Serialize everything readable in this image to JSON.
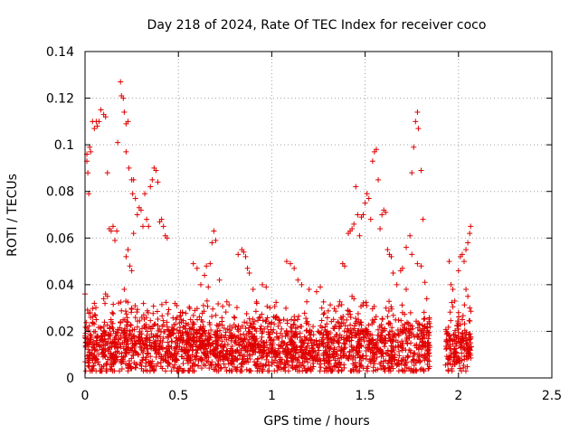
{
  "chart_data": {
    "type": "scatter",
    "title": "Day 218 of 2024, Rate Of TEC Index for receiver coco",
    "xlabel": "GPS time / hours",
    "ylabel": "ROTI / TECUs",
    "xlim": [
      0,
      2.5
    ],
    "ylim": [
      0,
      0.14
    ],
    "x_ticks": [
      0,
      0.5,
      1,
      1.5,
      2,
      2.5
    ],
    "x_tick_labels": [
      "0",
      "0.5",
      "1",
      "1.5",
      "2",
      "2.5"
    ],
    "y_ticks": [
      0,
      0.02,
      0.04,
      0.06,
      0.08,
      0.1,
      0.12,
      0.14
    ],
    "y_tick_labels": [
      "0",
      "0.02",
      "0.04",
      "0.06",
      "0.08",
      "0.1",
      "0.12",
      "0.14"
    ],
    "grid": true,
    "marker": "plus",
    "color": "#e00000",
    "series": [
      {
        "name": "ROTI",
        "points": [
          [
            0.0,
            0.036
          ],
          [
            0.0,
            0.018
          ],
          [
            0.01,
            0.096
          ],
          [
            0.01,
            0.093
          ],
          [
            0.015,
            0.088
          ],
          [
            0.02,
            0.079
          ],
          [
            0.025,
            0.099
          ],
          [
            0.03,
            0.097
          ],
          [
            0.04,
            0.11
          ],
          [
            0.05,
            0.107
          ],
          [
            0.06,
            0.11
          ],
          [
            0.065,
            0.108
          ],
          [
            0.075,
            0.11
          ],
          [
            0.085,
            0.115
          ],
          [
            0.1,
            0.113
          ],
          [
            0.11,
            0.112
          ],
          [
            0.12,
            0.088
          ],
          [
            0.13,
            0.064
          ],
          [
            0.14,
            0.063
          ],
          [
            0.15,
            0.065
          ],
          [
            0.16,
            0.059
          ],
          [
            0.17,
            0.063
          ],
          [
            0.175,
            0.101
          ],
          [
            0.19,
            0.127
          ],
          [
            0.195,
            0.121
          ],
          [
            0.205,
            0.12
          ],
          [
            0.21,
            0.114
          ],
          [
            0.22,
            0.109
          ],
          [
            0.23,
            0.11
          ],
          [
            0.22,
            0.097
          ],
          [
            0.235,
            0.09
          ],
          [
            0.25,
            0.085
          ],
          [
            0.255,
            0.079
          ],
          [
            0.26,
            0.085
          ],
          [
            0.27,
            0.077
          ],
          [
            0.28,
            0.07
          ],
          [
            0.29,
            0.073
          ],
          [
            0.3,
            0.072
          ],
          [
            0.31,
            0.065
          ],
          [
            0.32,
            0.079
          ],
          [
            0.33,
            0.068
          ],
          [
            0.34,
            0.065
          ],
          [
            0.35,
            0.082
          ],
          [
            0.36,
            0.085
          ],
          [
            0.37,
            0.09
          ],
          [
            0.38,
            0.089
          ],
          [
            0.39,
            0.084
          ],
          [
            0.4,
            0.067
          ],
          [
            0.41,
            0.068
          ],
          [
            0.42,
            0.065
          ],
          [
            0.43,
            0.061
          ],
          [
            0.44,
            0.06
          ],
          [
            0.22,
            0.052
          ],
          [
            0.23,
            0.055
          ],
          [
            0.24,
            0.048
          ],
          [
            0.25,
            0.046
          ],
          [
            0.26,
            0.062
          ],
          [
            0.21,
            0.038
          ],
          [
            0.1,
            0.034
          ],
          [
            0.11,
            0.036
          ],
          [
            0.12,
            0.035
          ],
          [
            0.05,
            0.032
          ],
          [
            0.06,
            0.025
          ],
          [
            0.03,
            0.026
          ],
          [
            0.58,
            0.049
          ],
          [
            0.6,
            0.047
          ],
          [
            0.62,
            0.04
          ],
          [
            0.64,
            0.044
          ],
          [
            0.66,
            0.039
          ],
          [
            0.68,
            0.058
          ],
          [
            0.69,
            0.063
          ],
          [
            0.7,
            0.059
          ],
          [
            0.72,
            0.042
          ],
          [
            0.67,
            0.049
          ],
          [
            0.65,
            0.048
          ],
          [
            0.82,
            0.053
          ],
          [
            0.84,
            0.055
          ],
          [
            0.85,
            0.054
          ],
          [
            0.86,
            0.052
          ],
          [
            0.87,
            0.047
          ],
          [
            0.88,
            0.045
          ],
          [
            0.9,
            0.038
          ],
          [
            0.92,
            0.032
          ],
          [
            0.95,
            0.04
          ],
          [
            0.97,
            0.039
          ],
          [
            1.08,
            0.05
          ],
          [
            1.1,
            0.049
          ],
          [
            1.12,
            0.047
          ],
          [
            1.14,
            0.042
          ],
          [
            1.16,
            0.04
          ],
          [
            1.2,
            0.038
          ],
          [
            1.24,
            0.037
          ],
          [
            1.26,
            0.039
          ],
          [
            1.38,
            0.049
          ],
          [
            1.39,
            0.048
          ],
          [
            1.41,
            0.062
          ],
          [
            1.42,
            0.063
          ],
          [
            1.43,
            0.064
          ],
          [
            1.44,
            0.066
          ],
          [
            1.45,
            0.082
          ],
          [
            1.46,
            0.07
          ],
          [
            1.47,
            0.061
          ],
          [
            1.48,
            0.069
          ],
          [
            1.49,
            0.07
          ],
          [
            1.5,
            0.075
          ],
          [
            1.51,
            0.079
          ],
          [
            1.52,
            0.077
          ],
          [
            1.53,
            0.068
          ],
          [
            1.54,
            0.093
          ],
          [
            1.55,
            0.097
          ],
          [
            1.56,
            0.098
          ],
          [
            1.57,
            0.085
          ],
          [
            1.58,
            0.064
          ],
          [
            1.59,
            0.07
          ],
          [
            1.6,
            0.072
          ],
          [
            1.61,
            0.071
          ],
          [
            1.62,
            0.055
          ],
          [
            1.63,
            0.053
          ],
          [
            1.64,
            0.052
          ],
          [
            1.43,
            0.035
          ],
          [
            1.44,
            0.034
          ],
          [
            1.65,
            0.045
          ],
          [
            1.67,
            0.04
          ],
          [
            1.69,
            0.046
          ],
          [
            1.7,
            0.047
          ],
          [
            1.72,
            0.056
          ],
          [
            1.74,
            0.061
          ],
          [
            1.75,
            0.088
          ],
          [
            1.76,
            0.099
          ],
          [
            1.77,
            0.11
          ],
          [
            1.78,
            0.114
          ],
          [
            1.785,
            0.107
          ],
          [
            1.8,
            0.089
          ],
          [
            1.81,
            0.068
          ],
          [
            1.75,
            0.053
          ],
          [
            1.78,
            0.049
          ],
          [
            1.8,
            0.048
          ],
          [
            1.82,
            0.041
          ],
          [
            1.83,
            0.034
          ],
          [
            1.72,
            0.038
          ],
          [
            1.7,
            0.028
          ],
          [
            1.95,
            0.05
          ],
          [
            1.96,
            0.04
          ],
          [
            1.97,
            0.038
          ],
          [
            1.98,
            0.033
          ],
          [
            2.0,
            0.046
          ],
          [
            2.01,
            0.052
          ],
          [
            2.02,
            0.053
          ],
          [
            2.03,
            0.05
          ],
          [
            2.04,
            0.055
          ],
          [
            2.05,
            0.058
          ],
          [
            2.06,
            0.062
          ],
          [
            2.065,
            0.065
          ],
          [
            2.04,
            0.038
          ],
          [
            2.05,
            0.035
          ],
          [
            2.06,
            0.03
          ],
          [
            2.0,
            0.028
          ],
          [
            2.02,
            0.025
          ]
        ]
      }
    ],
    "dense_band": {
      "x_ranges": [
        [
          0.0,
          0.45
        ],
        [
          0.45,
          1.85
        ],
        [
          1.93,
          2.07
        ]
      ],
      "y_range": [
        0.003,
        0.033
      ],
      "dense_y_center": 0.013
    }
  }
}
